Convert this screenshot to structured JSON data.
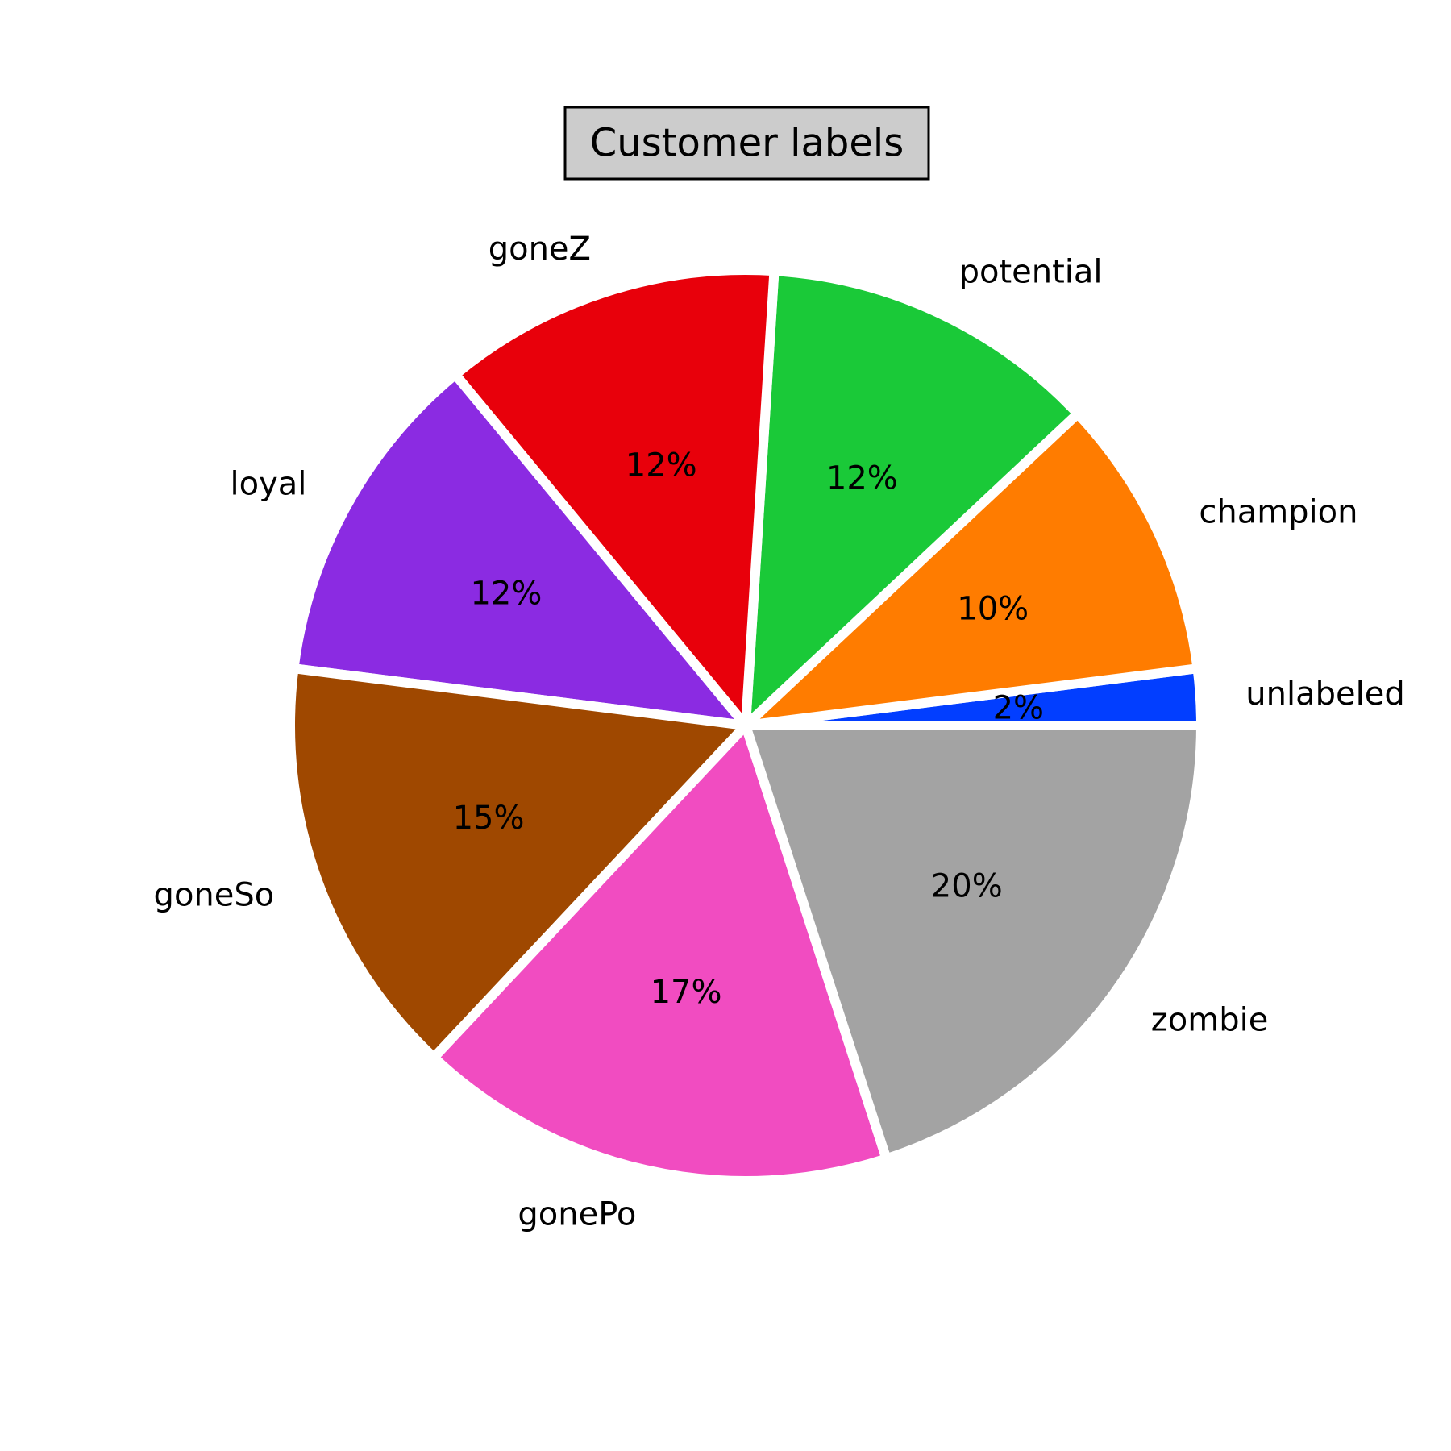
{
  "chart_data": {
    "type": "pie",
    "title": "Customer labels",
    "start_angle_deg": 0,
    "direction": "counterclockwise",
    "slices": [
      {
        "label": "unlabeled",
        "value": 2,
        "pct_label": "2%",
        "color": "#023eff"
      },
      {
        "label": "champion",
        "value": 10,
        "pct_label": "10%",
        "color": "#ff7c00"
      },
      {
        "label": "potential",
        "value": 12,
        "pct_label": "12%",
        "color": "#1ac938"
      },
      {
        "label": "goneZ",
        "value": 12,
        "pct_label": "12%",
        "color": "#e8000b"
      },
      {
        "label": "loyal",
        "value": 12,
        "pct_label": "12%",
        "color": "#8b2be2"
      },
      {
        "label": "goneSo",
        "value": 15,
        "pct_label": "15%",
        "color": "#9f4800"
      },
      {
        "label": "gonePo",
        "value": 17,
        "pct_label": "17%",
        "color": "#f14cc1"
      },
      {
        "label": "zombie",
        "value": 20,
        "pct_label": "20%",
        "color": "#a3a3a3"
      }
    ]
  }
}
